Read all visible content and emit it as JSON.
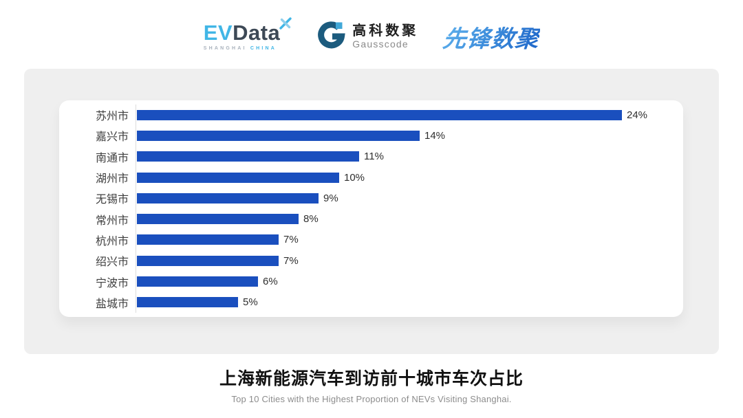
{
  "header": {
    "evdata": {
      "ev": "EV",
      "data": "Data",
      "sub_left": "SHANGHAI",
      "sub_right": "CHINA"
    },
    "gausscode": {
      "cn": "高科数聚",
      "en": "Gausscode"
    },
    "xianfeng": {
      "text": "先锋数聚"
    }
  },
  "chart_data": {
    "type": "bar",
    "orientation": "horizontal",
    "title": "上海新能源汽车到访前十城市车次占比",
    "title_en": "Top 10 Cities with the Highest Proportion of  NEVs Visiting Shanghai.",
    "categories": [
      "苏州市",
      "嘉兴市",
      "南通市",
      "湖州市",
      "无锡市",
      "常州市",
      "杭州市",
      "绍兴市",
      "宁波市",
      "盐城市"
    ],
    "values": [
      24,
      14,
      11,
      10,
      9,
      8,
      7,
      7,
      6,
      5
    ],
    "value_labels": [
      "24%",
      "14%",
      "11%",
      "10%",
      "9%",
      "8%",
      "7%",
      "7%",
      "6%",
      "5%"
    ],
    "unit": "%",
    "xlim": [
      0,
      24
    ],
    "grid": false,
    "legend": false,
    "value_label_position": "end-of-bar",
    "bar_color": "#1A4FBE",
    "axis_line_color": "#dcdcdc"
  },
  "footer": {
    "title": "上海新能源汽车到访前十城市车次占比",
    "subtitle": "Top 10 Cities with the Highest Proportion of  NEVs Visiting Shanghai."
  },
  "colors": {
    "page_bg": "#ffffff",
    "panel_bg": "#efefef",
    "card_bg": "#ffffff",
    "bar": "#1A4FBE",
    "evdata_blue": "#41B6E6",
    "evdata_dark": "#3D4956",
    "gausscode_dark": "#1C5B7E",
    "gausscode_light": "#41A8D8",
    "xianfeng_blue_start": "#5FB0EC",
    "xianfeng_blue_end": "#1E66C9"
  }
}
